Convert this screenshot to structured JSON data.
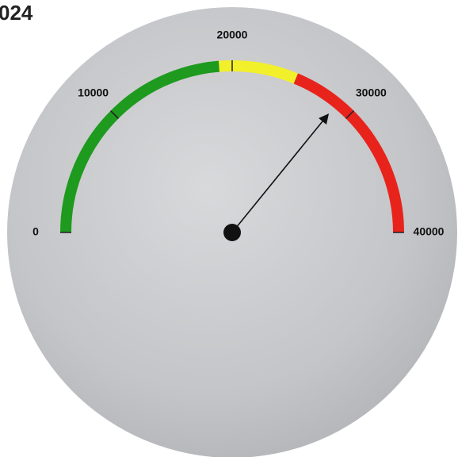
{
  "chart_data": {
    "type": "gauge",
    "title": "024",
    "range": [
      0,
      40000
    ],
    "ticks": [
      0,
      10000,
      20000,
      30000,
      40000
    ],
    "bands": [
      {
        "from": 0,
        "to": 19000,
        "color": "#1e9a1e"
      },
      {
        "from": 19000,
        "to": 25000,
        "color": "#f2f02a"
      },
      {
        "from": 25000,
        "to": 40000,
        "color": "#e8231c"
      }
    ],
    "value": 28700
  }
}
